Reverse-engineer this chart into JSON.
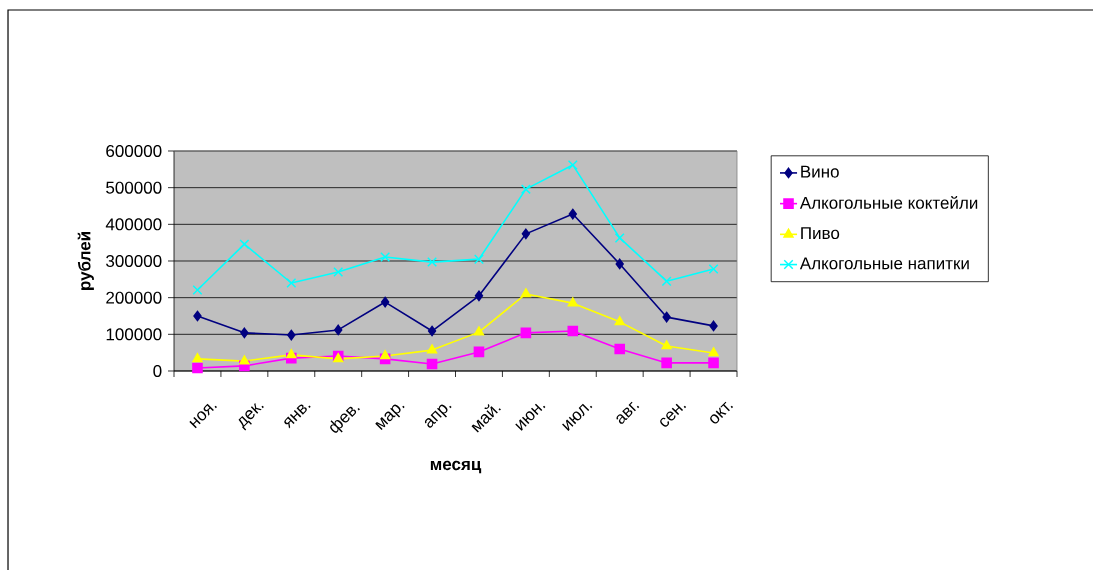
{
  "chart_data": {
    "type": "line",
    "xlabel": "месяц",
    "ylabel": "рублей",
    "categories": [
      "ноя.",
      "дек.",
      "янв.",
      "фев.",
      "мар.",
      "апр.",
      "май.",
      "июн.",
      "июл.",
      "авг.",
      "сен.",
      "окт."
    ],
    "series": [
      {
        "name": "Вино",
        "color": "#000080",
        "marker": "diamond",
        "values": [
          150000,
          104000,
          98000,
          112000,
          188000,
          109000,
          205000,
          374000,
          428000,
          292000,
          147000,
          123000
        ]
      },
      {
        "name": "Алкогольные коктейли",
        "color": "#ff00ff",
        "marker": "square",
        "values": [
          8000,
          14000,
          35000,
          41000,
          33000,
          19000,
          52000,
          104000,
          109000,
          60000,
          22000,
          22000
        ]
      },
      {
        "name": "Пиво",
        "color": "#ffff00",
        "marker": "triangle",
        "values": [
          33000,
          27000,
          44000,
          33000,
          41000,
          57000,
          106000,
          210000,
          185000,
          134000,
          68000,
          49000
        ]
      },
      {
        "name": "Алкогольные напитки",
        "color": "#00ffff",
        "marker": "cross",
        "values": [
          221000,
          346000,
          240000,
          270000,
          311000,
          297000,
          305000,
          496000,
          562000,
          363000,
          245000,
          278000
        ]
      }
    ],
    "ylim": [
      0,
      600000
    ],
    "yticks": [
      0,
      100000,
      200000,
      300000,
      400000,
      500000,
      600000
    ],
    "grid": "y",
    "legend": "right"
  }
}
